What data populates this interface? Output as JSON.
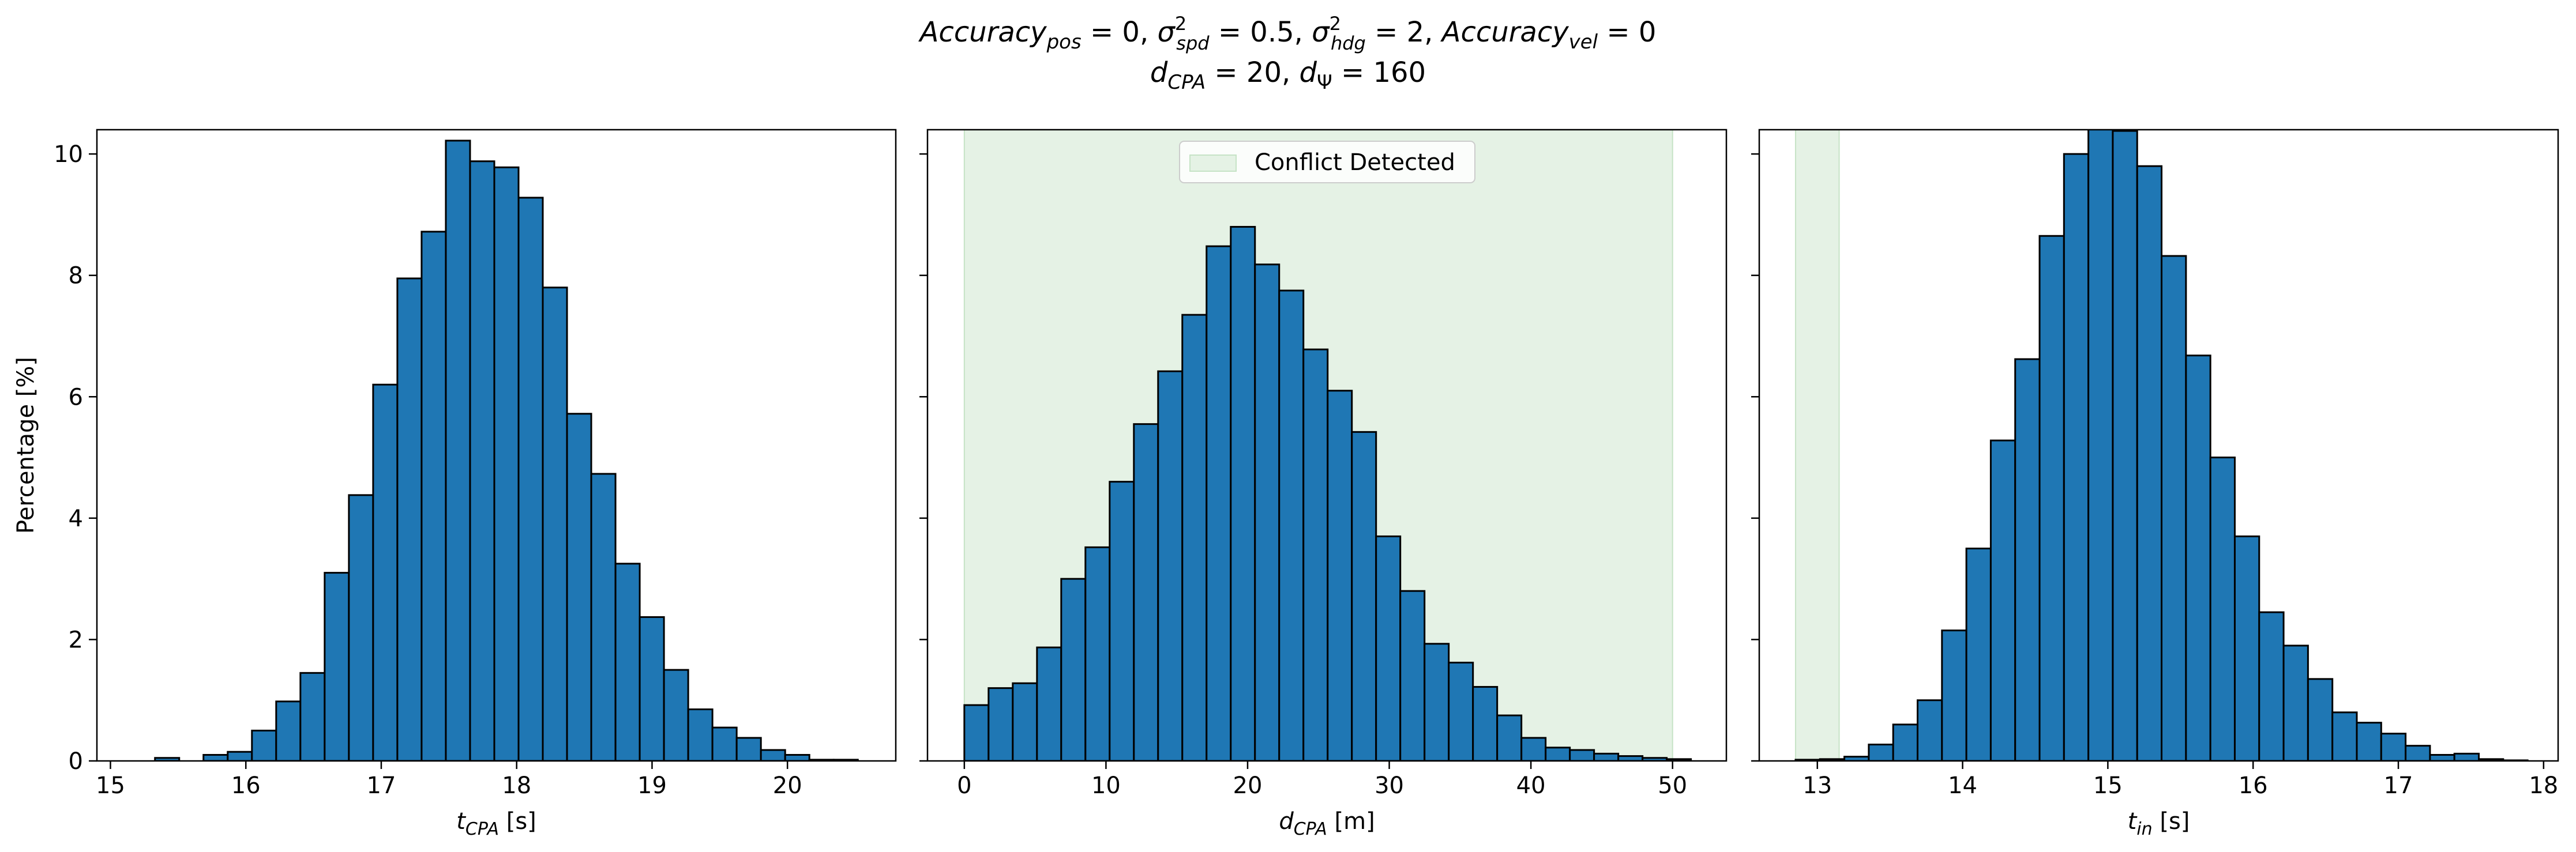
{
  "figure": {
    "title_line1": "Accuracy_pos = 0, σ²_spd = 0.5, σ²_hdg = 2, Accuracy_vel = 0",
    "title_line2": "d_CPA = 20, d_Ψ = 160",
    "title_parts": {
      "accuracy": "Accuracy",
      "pos": "pos",
      "eq0": " = 0, ",
      "sigma": "σ",
      "sq": "2",
      "spd": "spd",
      "eq05": " = 0.5, ",
      "hdg": "hdg",
      "eq2": " = 2, ",
      "vel": "vel",
      "eq0b": " = 0",
      "d": "d",
      "cpa": "CPA",
      "eq20": " = 20, ",
      "psi": "Ψ",
      "eq160": " = 160"
    }
  },
  "colors": {
    "bar_fill": "#1f77b4",
    "bar_edge": "#000000",
    "conflict_fill": "#e5f2e5",
    "conflict_edge": "#c6e3c6"
  },
  "chart_data": [
    {
      "type": "bar",
      "subtype": "histogram",
      "xlabel": "t_CPA [s]",
      "xlabel_parts": {
        "sym": "t",
        "sub": "CPA",
        "unit": " [s]"
      },
      "ylabel": "Percentage [%]",
      "xlim": [
        14.9,
        20.8
      ],
      "ylim": [
        0,
        10.4
      ],
      "xticks": [
        15,
        16,
        17,
        18,
        19,
        20
      ],
      "yticks": [
        0,
        2,
        4,
        6,
        8,
        10
      ],
      "bin_start": 15.15,
      "bin_width": 0.179,
      "values": [
        0.0,
        0.05,
        0.0,
        0.1,
        0.15,
        0.5,
        0.98,
        1.45,
        3.1,
        4.38,
        6.2,
        7.95,
        8.72,
        10.22,
        9.88,
        9.78,
        9.28,
        7.8,
        5.72,
        4.73,
        3.25,
        2.37,
        1.5,
        0.85,
        0.55,
        0.38,
        0.18,
        0.1,
        0.02,
        0.02
      ]
    },
    {
      "type": "bar",
      "subtype": "histogram",
      "xlabel": "d_CPA [m]",
      "xlabel_parts": {
        "sym": "d",
        "sub": "CPA",
        "unit": " [m]"
      },
      "xlim": [
        -2.6,
        53.8
      ],
      "ylim": [
        0,
        10.4
      ],
      "xticks": [
        0,
        10,
        20,
        30,
        40,
        50
      ],
      "yticks": [
        0,
        2,
        4,
        6,
        8,
        10
      ],
      "bin_start": 0,
      "bin_width": 1.71,
      "values": [
        0.92,
        1.2,
        1.28,
        1.87,
        3.0,
        3.52,
        4.6,
        5.55,
        6.42,
        7.35,
        8.48,
        8.8,
        8.18,
        7.75,
        6.78,
        6.1,
        5.42,
        3.7,
        2.8,
        1.93,
        1.62,
        1.22,
        0.75,
        0.38,
        0.22,
        0.18,
        0.12,
        0.08,
        0.05,
        0.03
      ],
      "span": {
        "x0": 0,
        "x1": 50
      },
      "legend": {
        "label": "Conflict Detected",
        "position": "upper-center"
      }
    },
    {
      "type": "bar",
      "subtype": "histogram",
      "xlabel": "t_in [s]",
      "xlabel_parts": {
        "sym": "t",
        "sub": "in",
        "unit": " [s]"
      },
      "xlim": [
        12.6,
        18.1
      ],
      "ylim": [
        0,
        10.4
      ],
      "xticks": [
        13,
        14,
        15,
        16,
        17,
        18
      ],
      "yticks": [
        0,
        2,
        4,
        6,
        8,
        10
      ],
      "bin_start": 12.85,
      "bin_width": 0.168,
      "values": [
        0.02,
        0.03,
        0.07,
        0.27,
        0.6,
        1.0,
        2.15,
        3.5,
        5.28,
        6.62,
        8.65,
        10.0,
        10.42,
        10.38,
        9.8,
        8.32,
        6.68,
        5.0,
        3.7,
        2.45,
        1.9,
        1.35,
        0.8,
        0.63,
        0.45,
        0.25,
        0.1,
        0.12,
        0.03,
        0.01
      ],
      "span": {
        "x0": 12.85,
        "x1": 13.15
      }
    }
  ]
}
